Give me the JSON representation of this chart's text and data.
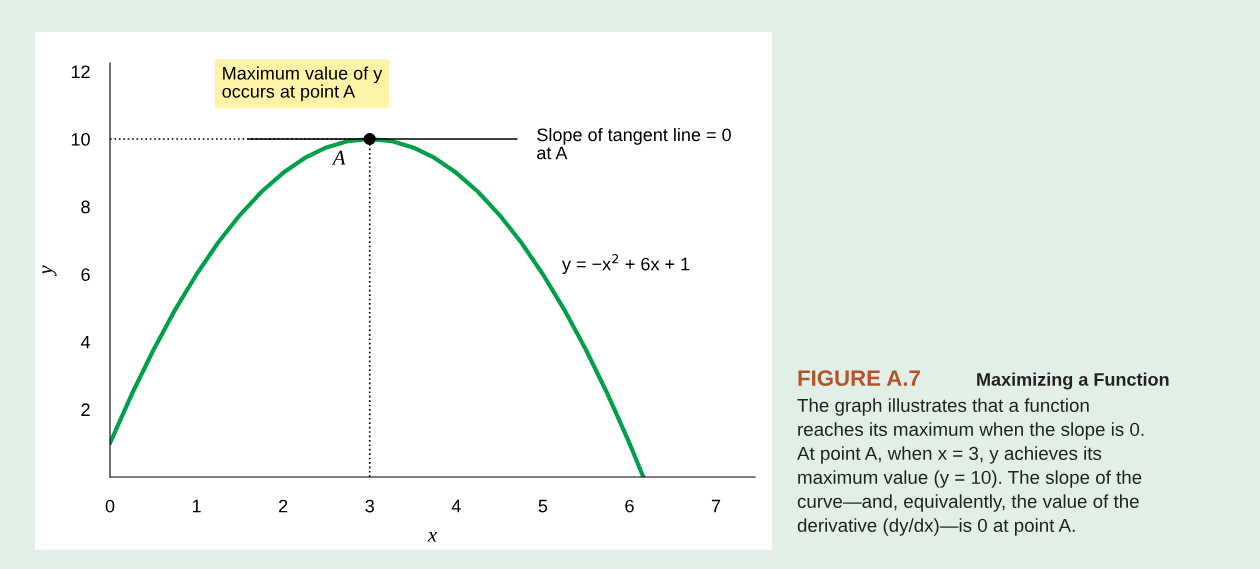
{
  "chart_data": {
    "type": "line",
    "title": "FIGURE A.7",
    "subtitle": "Maximizing a Function",
    "xlabel": "x",
    "ylabel": "y",
    "xlim": [
      0,
      7.45
    ],
    "ylim": [
      0,
      12.25
    ],
    "xticks": [
      0,
      1,
      2,
      3,
      4,
      5,
      6,
      7
    ],
    "yticks": [
      2,
      4,
      6,
      8,
      10,
      12
    ],
    "series": [
      {
        "type": "line",
        "color": "#00a04a",
        "line_style": "solid",
        "x": [
          0,
          0.25,
          0.5,
          0.75,
          1,
          1.25,
          1.5,
          1.75,
          2,
          2.25,
          2.5,
          2.75,
          3,
          3.25,
          3.5,
          3.75,
          4,
          4.25,
          4.5,
          4.75,
          5,
          5.25,
          5.5,
          5.75,
          6,
          6.16
        ],
        "values": [
          1,
          2.44,
          3.75,
          4.94,
          6,
          6.94,
          7.75,
          8.44,
          9,
          9.44,
          9.75,
          9.94,
          10,
          9.94,
          9.75,
          9.44,
          9,
          8.44,
          7.75,
          6.94,
          6,
          4.94,
          3.75,
          2.44,
          1,
          0
        ]
      },
      {
        "type": "line",
        "color": "#000000",
        "line_style": "solid",
        "x": [
          1.6,
          4.7
        ],
        "values": [
          10,
          10
        ]
      },
      {
        "type": "line",
        "color": "#000000",
        "line_style": "dotted",
        "x": [
          0,
          3
        ],
        "values": [
          10,
          10
        ]
      },
      {
        "type": "line",
        "color": "#000000",
        "line_style": "dotted",
        "x": [
          3,
          3
        ],
        "values": [
          0,
          10
        ]
      },
      {
        "type": "scatter",
        "color": "#000000",
        "marker": "circle",
        "x": [
          3
        ],
        "values": [
          10
        ]
      }
    ],
    "annotations": [
      "Maximum value of y\noccurs at point A",
      {
        "text": "A",
        "x": 3,
        "y": 10
      },
      {
        "text": "Slope of tangent line = 0\nat A",
        "x": 4.7,
        "y": 10
      },
      "y = −x$^{2}$ + 6x + 1",
      "The graph illustrates that a function",
      "reaches its maximum when the slope is 0.",
      "At point A, when x = 3, y achieves its",
      "maximum value (y = 10). The slope of the",
      "curve—and, equivalently, the value of the",
      "derivative (dy/dx)—is 0 at point A."
    ]
  }
}
